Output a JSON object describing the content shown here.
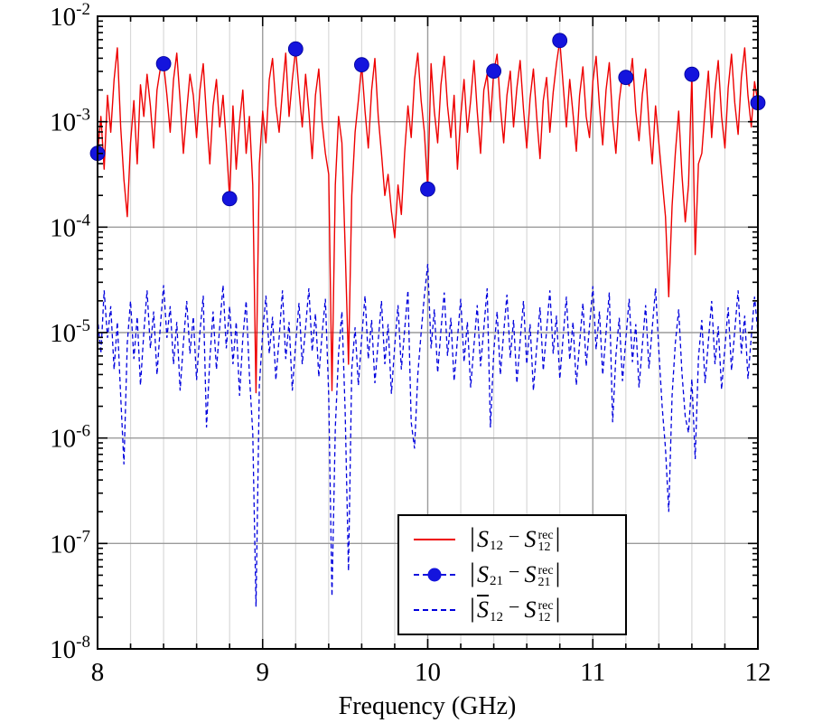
{
  "figure": {
    "background": "#ffffff"
  },
  "colors": {
    "s12_line": "#ee0000",
    "s21_marker": "#1414dd",
    "s12bar_line": "#0000dd",
    "grid_minor": "#d9d9d9",
    "grid_major": "#9b9b9b",
    "axis": "#000000"
  },
  "axes": {
    "x": {
      "label": "Frequency (GHz)",
      "min": 8,
      "max": 12,
      "major_ticks": [
        8,
        9,
        10,
        11,
        12
      ],
      "minor_step": 0.2
    },
    "y": {
      "scale": "log",
      "base": "10",
      "tick_exponents": [
        -2,
        -3,
        -4,
        -5,
        -6,
        -7,
        -8
      ]
    }
  },
  "chart_data": {
    "type": "line",
    "title": "",
    "xlabel": "Frequency (GHz)",
    "ylabel": "",
    "x_range": [
      8,
      12
    ],
    "ylim_exponents": [
      -8,
      -2
    ],
    "grid": true,
    "legend_position": "lower center-right inside plot",
    "x_start": 8.0,
    "x_step": 0.02,
    "series": [
      {
        "name": "|S12 - S12_rec|",
        "type": "line",
        "style": "solid",
        "color": "#ee0000",
        "log10_values": [
          -3.3,
          -2.95,
          -3.45,
          -2.75,
          -3.1,
          -2.6,
          -2.3,
          -3.05,
          -3.55,
          -3.9,
          -3.2,
          -2.8,
          -3.4,
          -2.65,
          -2.95,
          -2.55,
          -2.85,
          -3.25,
          -2.7,
          -2.5,
          -2.45,
          -2.75,
          -3.1,
          -2.6,
          -2.35,
          -2.8,
          -3.3,
          -2.9,
          -2.55,
          -2.75,
          -3.15,
          -2.7,
          -2.45,
          -2.95,
          -3.4,
          -2.85,
          -2.6,
          -3.05,
          -2.75,
          -3.2,
          -3.73,
          -2.85,
          -3.45,
          -3.0,
          -2.7,
          -3.3,
          -2.95,
          -3.6,
          -5.57,
          -3.4,
          -2.9,
          -3.2,
          -2.6,
          -2.4,
          -2.85,
          -3.1,
          -2.7,
          -2.35,
          -2.95,
          -2.6,
          -2.31,
          -2.7,
          -3.05,
          -2.55,
          -2.9,
          -3.35,
          -2.75,
          -2.5,
          -3.0,
          -3.3,
          -3.5,
          -5.55,
          -3.6,
          -2.95,
          -3.2,
          -4.2,
          -5.3,
          -3.7,
          -3.1,
          -2.8,
          -2.46,
          -2.9,
          -3.25,
          -2.7,
          -2.4,
          -2.95,
          -3.3,
          -3.7,
          -3.5,
          -3.85,
          -4.1,
          -3.6,
          -3.88,
          -3.3,
          -2.85,
          -3.15,
          -2.6,
          -2.35,
          -2.8,
          -3.1,
          -3.64,
          -2.45,
          -2.9,
          -3.2,
          -2.65,
          -2.38,
          -2.85,
          -3.15,
          -2.75,
          -3.45,
          -2.95,
          -2.6,
          -3.1,
          -2.8,
          -2.42,
          -2.9,
          -3.3,
          -2.7,
          -2.55,
          -3.0,
          -2.52,
          -2.36,
          -2.85,
          -3.2,
          -2.75,
          -2.52,
          -3.05,
          -2.68,
          -2.42,
          -2.88,
          -3.25,
          -2.78,
          -2.5,
          -2.95,
          -3.35,
          -2.8,
          -2.58,
          -3.1,
          -2.72,
          -2.45,
          -2.23,
          -2.65,
          -3.05,
          -2.6,
          -2.92,
          -3.28,
          -2.75,
          -2.48,
          -2.95,
          -3.15,
          -2.62,
          -2.38,
          -2.85,
          -3.22,
          -2.7,
          -2.44,
          -2.98,
          -3.3,
          -2.8,
          -2.55,
          -2.58,
          -2.66,
          -2.4,
          -2.9,
          -3.18,
          -2.74,
          -2.5,
          -3.02,
          -3.4,
          -2.85,
          -3.2,
          -3.55,
          -3.9,
          -4.66,
          -3.8,
          -3.3,
          -2.9,
          -3.5,
          -3.95,
          -3.6,
          -2.55,
          -4.26,
          -3.4,
          -3.3,
          -2.88,
          -2.52,
          -3.15,
          -2.7,
          -2.42,
          -2.95,
          -3.25,
          -2.68,
          -2.36,
          -2.82,
          -3.12,
          -2.58,
          -2.3,
          -2.75,
          -3.05,
          -2.62,
          -2.82
        ]
      },
      {
        "name": "|S21 - S21_rec|",
        "type": "markers",
        "marker": "filled-circle",
        "color": "#1414dd",
        "x": [
          8.0,
          8.4,
          8.8,
          9.2,
          9.6,
          10.0,
          10.4,
          10.8,
          11.2,
          11.6,
          12.0
        ],
        "log10_values": [
          -3.3,
          -2.45,
          -3.73,
          -2.31,
          -2.46,
          -3.64,
          -2.52,
          -2.23,
          -2.58,
          -2.55,
          -2.82
        ],
        "values": [
          0.0005,
          0.0035,
          0.00019,
          0.0049,
          0.0035,
          0.00023,
          0.003,
          0.0059,
          0.0026,
          0.0028,
          0.0015
        ]
      },
      {
        "name": "|S12bar - S12_rec|",
        "type": "line",
        "style": "dashed",
        "color": "#0000dd",
        "log10_values": [
          -4.85,
          -5.2,
          -4.6,
          -5.05,
          -4.75,
          -5.35,
          -4.9,
          -5.6,
          -6.25,
          -5.1,
          -4.7,
          -5.25,
          -4.85,
          -5.5,
          -5.0,
          -4.6,
          -5.15,
          -4.8,
          -5.4,
          -4.95,
          -4.55,
          -5.05,
          -4.75,
          -5.3,
          -4.9,
          -5.55,
          -5.1,
          -4.7,
          -5.2,
          -4.85,
          -5.45,
          -5.0,
          -4.65,
          -5.9,
          -5.25,
          -4.8,
          -5.35,
          -4.95,
          -4.55,
          -5.15,
          -4.75,
          -5.3,
          -4.9,
          -5.6,
          -5.05,
          -4.7,
          -5.4,
          -5.95,
          -7.6,
          -5.5,
          -5.0,
          -4.65,
          -5.2,
          -4.85,
          -5.45,
          -5.05,
          -4.6,
          -5.25,
          -4.9,
          -5.55,
          -5.1,
          -4.72,
          -5.3,
          -4.95,
          -4.58,
          -5.18,
          -4.82,
          -5.42,
          -5.02,
          -4.68,
          -5.6,
          -7.5,
          -5.9,
          -5.2,
          -4.8,
          -5.75,
          -7.26,
          -5.35,
          -4.95,
          -5.5,
          -5.05,
          -4.65,
          -5.25,
          -4.88,
          -5.48,
          -5.08,
          -4.7,
          -5.3,
          -4.92,
          -5.58,
          -5.12,
          -4.74,
          -5.35,
          -4.98,
          -4.6,
          -5.85,
          -6.1,
          -5.4,
          -5.0,
          -4.65,
          -4.35,
          -5.15,
          -4.78,
          -5.38,
          -4.98,
          -4.62,
          -5.22,
          -4.86,
          -5.46,
          -5.06,
          -4.68,
          -5.28,
          -4.9,
          -5.52,
          -5.12,
          -4.74,
          -5.32,
          -4.96,
          -4.58,
          -5.9,
          -5.18,
          -4.8,
          -5.4,
          -5.0,
          -4.64,
          -5.24,
          -4.88,
          -5.48,
          -5.08,
          -4.7,
          -5.3,
          -4.92,
          -5.55,
          -5.14,
          -4.76,
          -5.36,
          -4.98,
          -4.6,
          -5.2,
          -4.84,
          -5.44,
          -5.04,
          -4.66,
          -5.26,
          -4.9,
          -5.5,
          -5.1,
          -4.72,
          -5.32,
          -4.94,
          -4.56,
          -5.16,
          -4.8,
          -5.4,
          -5.0,
          -4.62,
          -5.85,
          -5.22,
          -4.86,
          -5.46,
          -5.06,
          -4.68,
          -5.28,
          -4.92,
          -5.52,
          -5.12,
          -4.74,
          -5.34,
          -4.96,
          -4.58,
          -5.18,
          -5.7,
          -6.1,
          -6.7,
          -5.6,
          -5.1,
          -4.78,
          -5.38,
          -5.8,
          -5.95,
          -5.44,
          -6.2,
          -5.24,
          -4.88,
          -5.48,
          -5.08,
          -4.7,
          -5.3,
          -4.94,
          -5.54,
          -5.14,
          -4.76,
          -5.36,
          -4.98,
          -4.6,
          -5.2,
          -4.84,
          -5.44,
          -5.04,
          -4.66,
          -5.0
        ]
      }
    ]
  },
  "legend": {
    "items": [
      {
        "sample": "solid",
        "marker": false,
        "color": "#ee0000",
        "open": "|",
        "sym1": "S",
        "sub1": "12",
        "over1": false,
        "minus": "−",
        "sym2": "S",
        "sub2": "12",
        "sup2": "rec",
        "close": "|"
      },
      {
        "sample": "dashed",
        "marker": true,
        "color": "#1414dd",
        "open": "|",
        "sym1": "S",
        "sub1": "21",
        "over1": false,
        "minus": "−",
        "sym2": "S",
        "sub2": "21",
        "sup2": "rec",
        "close": "|"
      },
      {
        "sample": "dashed",
        "marker": false,
        "color": "#0000dd",
        "open": "|",
        "sym1": "S",
        "sub1": "12",
        "over1": true,
        "minus": "−",
        "sym2": "S",
        "sub2": "12",
        "sup2": "rec",
        "close": "|"
      }
    ]
  }
}
